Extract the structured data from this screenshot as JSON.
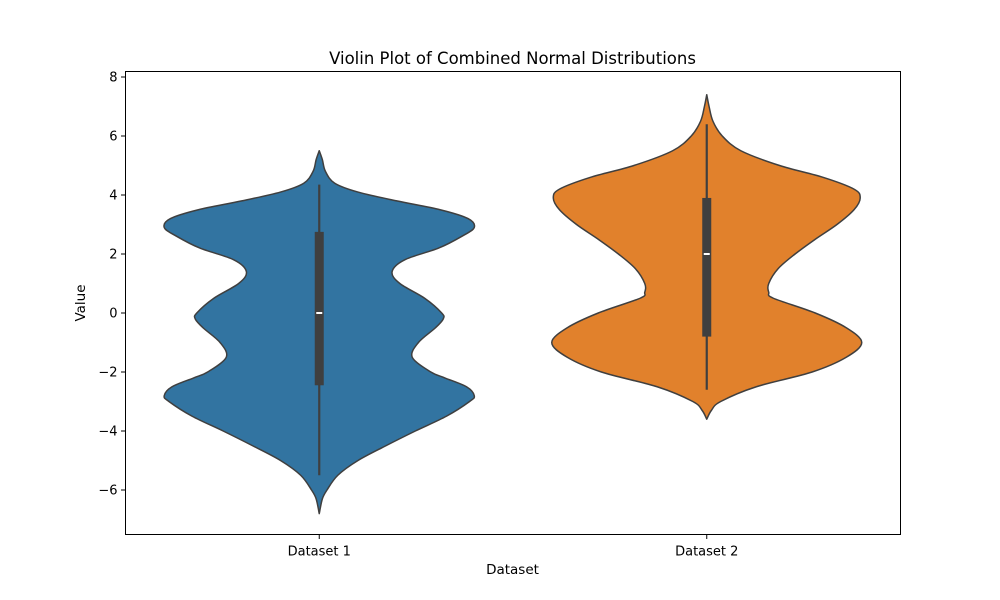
{
  "chart_data": {
    "type": "violin",
    "title": "Violin Plot of Combined Normal Distributions",
    "xlabel": "Dataset",
    "ylabel": "Value",
    "ylim": [
      -7.5,
      8.2
    ],
    "yticks": [
      -6,
      -4,
      -2,
      0,
      2,
      4,
      6,
      8
    ],
    "ytick_labels": [
      "−6",
      "−4",
      "−2",
      "0",
      "2",
      "4",
      "6",
      "8"
    ],
    "grid": false,
    "categories": [
      "Dataset 1",
      "Dataset 2"
    ],
    "series": [
      {
        "category": "Dataset 1",
        "color": "#3274a1",
        "min": -5.5,
        "q1": -2.45,
        "median": 0.0,
        "q3": 2.75,
        "max": 4.35,
        "violin_extent": [
          -6.8,
          5.5
        ],
        "density_profile": [
          [
            -6.8,
            0.0
          ],
          [
            -6.3,
            0.02
          ],
          [
            -6.0,
            0.05
          ],
          [
            -5.5,
            0.12
          ],
          [
            -5.0,
            0.25
          ],
          [
            -4.5,
            0.43
          ],
          [
            -4.0,
            0.62
          ],
          [
            -3.5,
            0.82
          ],
          [
            -3.0,
            0.97
          ],
          [
            -2.8,
            1.0
          ],
          [
            -2.5,
            0.95
          ],
          [
            -2.2,
            0.81
          ],
          [
            -2.0,
            0.72
          ],
          [
            -1.5,
            0.6
          ],
          [
            -1.0,
            0.64
          ],
          [
            -0.5,
            0.75
          ],
          [
            -0.2,
            0.8
          ],
          [
            0.0,
            0.79
          ],
          [
            0.5,
            0.68
          ],
          [
            1.0,
            0.52
          ],
          [
            1.4,
            0.47
          ],
          [
            1.8,
            0.55
          ],
          [
            2.2,
            0.77
          ],
          [
            2.6,
            0.92
          ],
          [
            2.9,
            1.0
          ],
          [
            3.2,
            0.96
          ],
          [
            3.5,
            0.78
          ],
          [
            3.8,
            0.5
          ],
          [
            4.1,
            0.25
          ],
          [
            4.4,
            0.1
          ],
          [
            4.8,
            0.04
          ],
          [
            5.2,
            0.02
          ],
          [
            5.5,
            0.0
          ]
        ]
      },
      {
        "category": "Dataset 2",
        "color": "#e1812c",
        "min": -2.6,
        "q1": -0.8,
        "median": 2.0,
        "q3": 3.9,
        "max": 6.4,
        "violin_extent": [
          -3.6,
          7.4
        ],
        "density_profile": [
          [
            -3.6,
            0.0
          ],
          [
            -3.3,
            0.03
          ],
          [
            -3.0,
            0.09
          ],
          [
            -2.5,
            0.32
          ],
          [
            -2.0,
            0.68
          ],
          [
            -1.5,
            0.9
          ],
          [
            -1.0,
            1.0
          ],
          [
            -0.5,
            0.9
          ],
          [
            0.0,
            0.7
          ],
          [
            0.5,
            0.43
          ],
          [
            0.7,
            0.4
          ],
          [
            1.0,
            0.4
          ],
          [
            1.5,
            0.46
          ],
          [
            2.0,
            0.57
          ],
          [
            2.5,
            0.7
          ],
          [
            3.0,
            0.84
          ],
          [
            3.5,
            0.95
          ],
          [
            3.9,
            0.99
          ],
          [
            4.2,
            0.95
          ],
          [
            4.6,
            0.75
          ],
          [
            5.0,
            0.47
          ],
          [
            5.5,
            0.22
          ],
          [
            6.0,
            0.1
          ],
          [
            6.5,
            0.04
          ],
          [
            7.0,
            0.015
          ],
          [
            7.4,
            0.0
          ]
        ]
      }
    ]
  }
}
